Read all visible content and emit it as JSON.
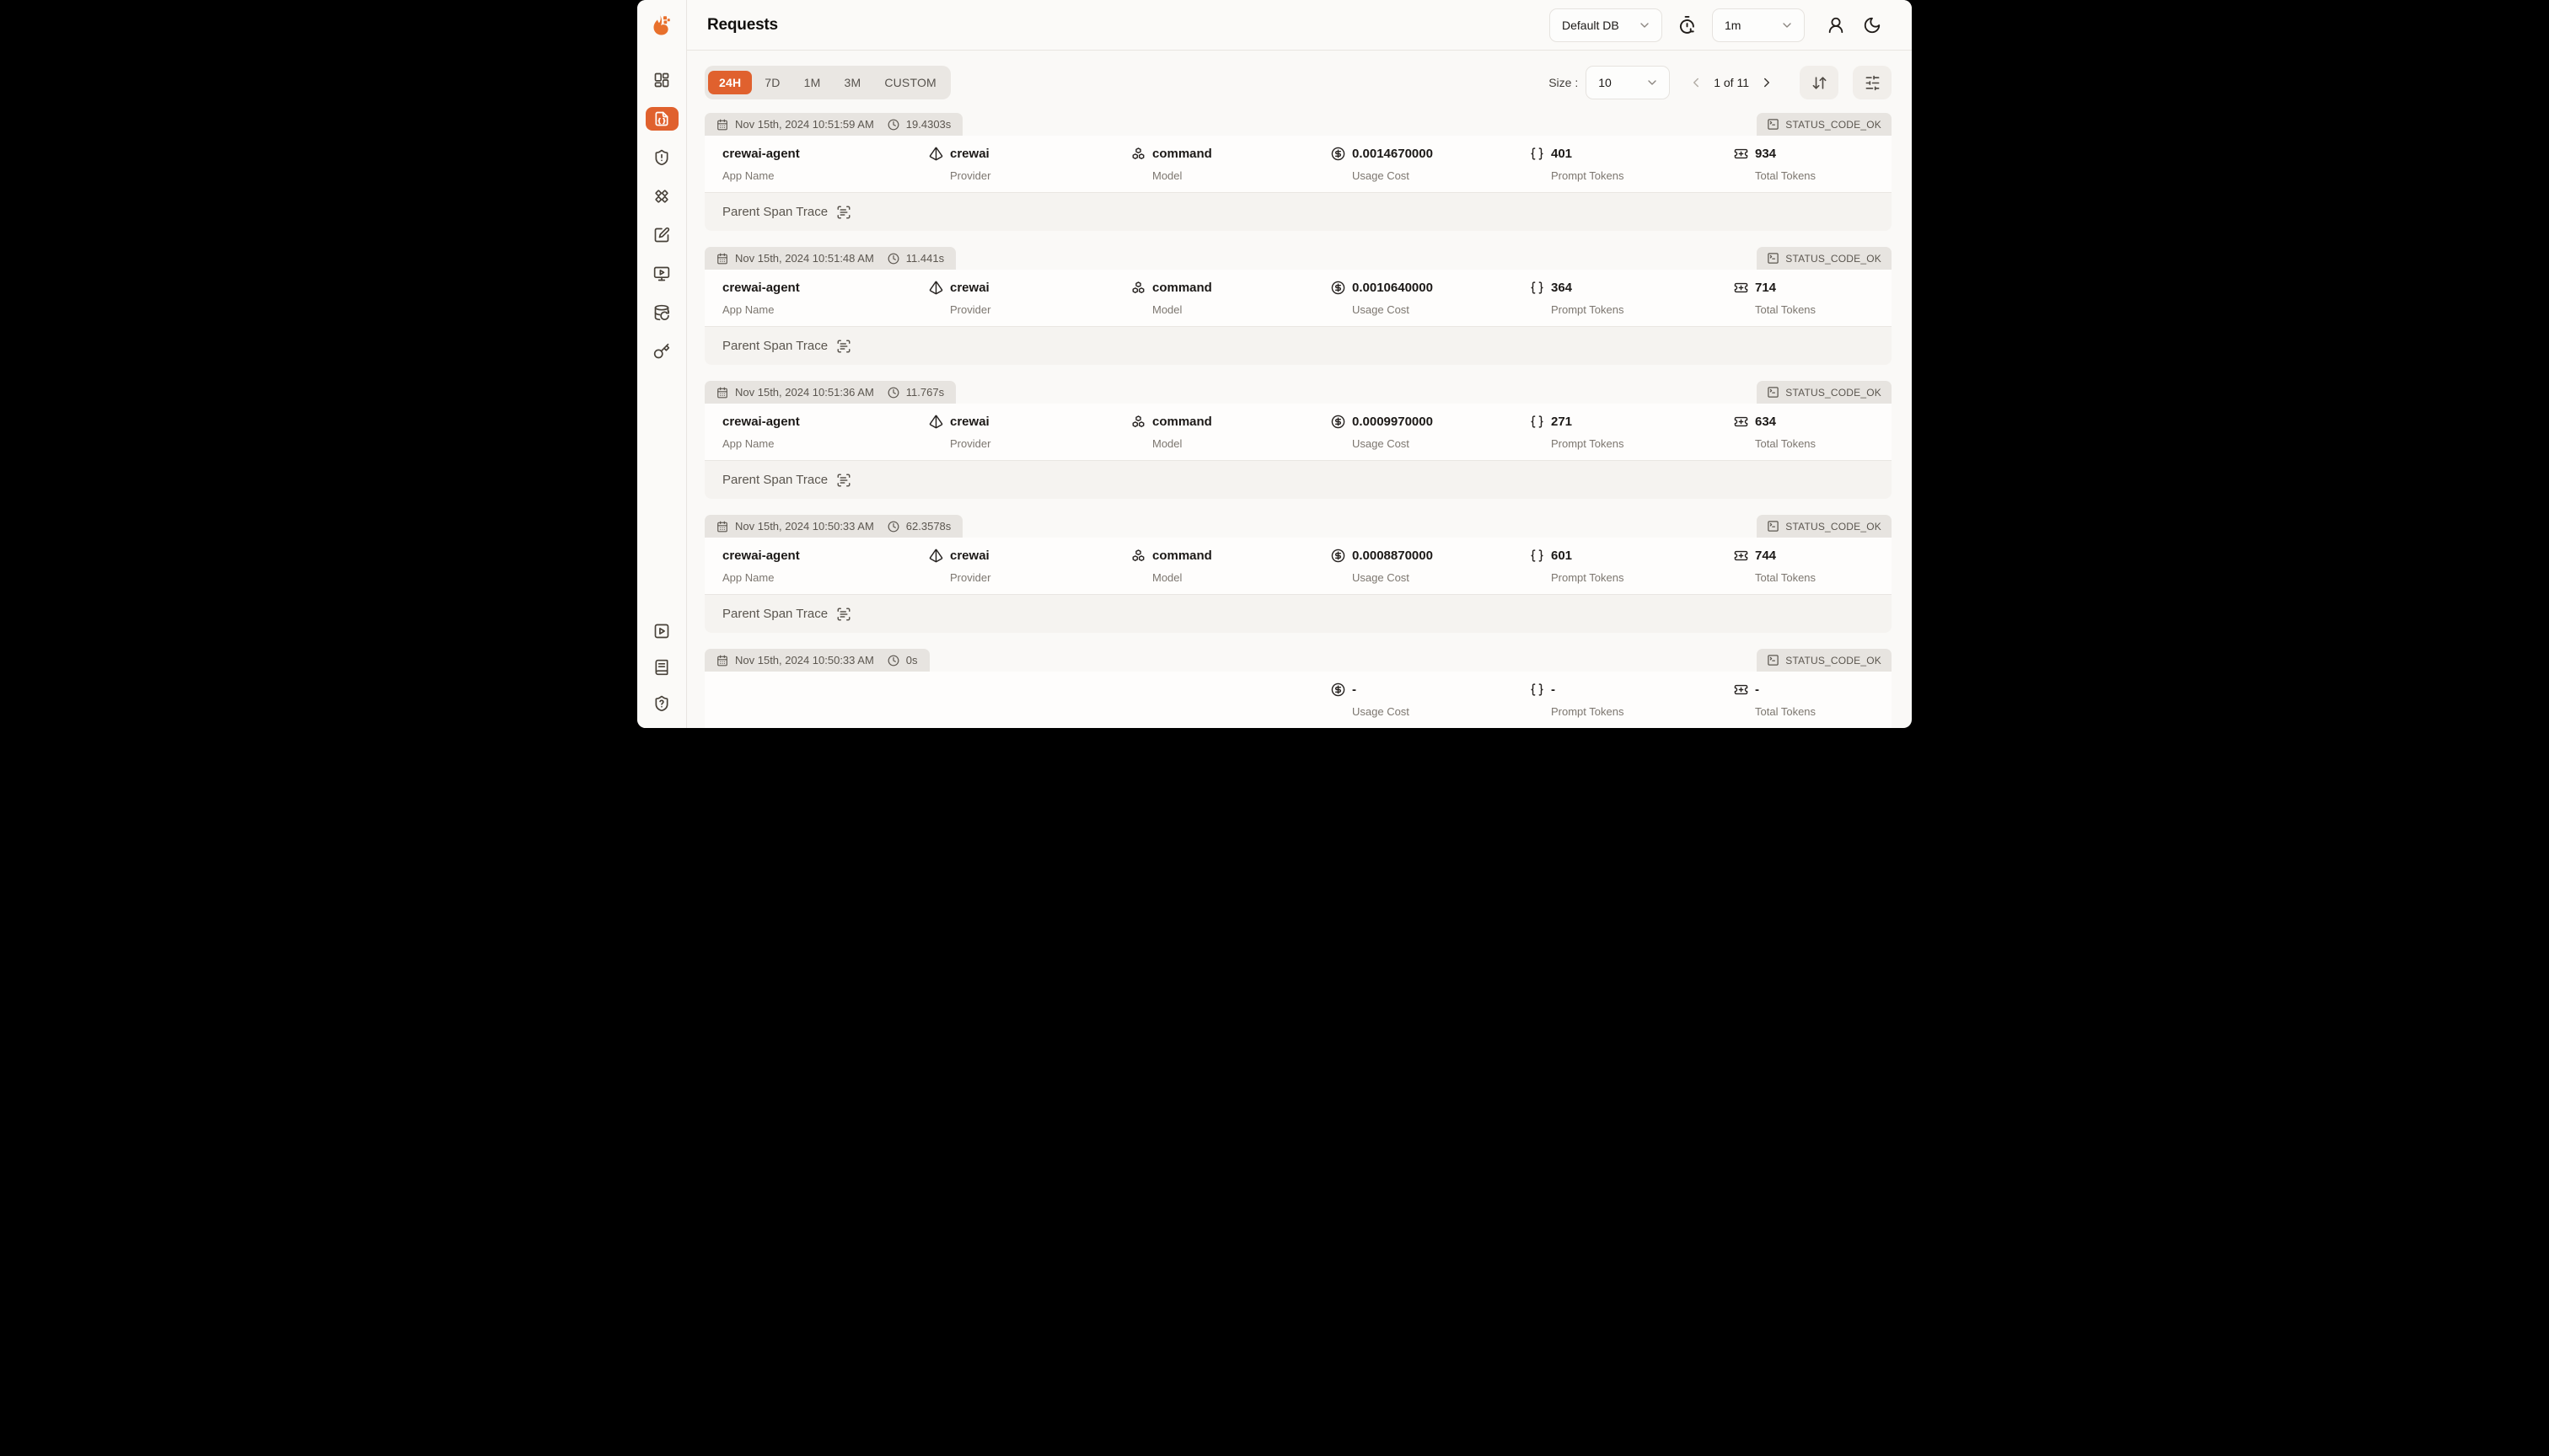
{
  "header": {
    "title": "Requests",
    "database_selector": {
      "value": "Default DB"
    },
    "refresh_selector": {
      "value": "1m"
    }
  },
  "sidebar": {
    "top": [
      {
        "name": "dashboard",
        "icon": "layout-dashboard",
        "active": false
      },
      {
        "name": "requests",
        "icon": "file-braces",
        "active": true
      },
      {
        "name": "exceptions",
        "icon": "shield-alert",
        "active": false
      },
      {
        "name": "prompt-hub",
        "icon": "diamonds",
        "active": false
      },
      {
        "name": "vault",
        "icon": "square-pen",
        "active": false
      },
      {
        "name": "openground",
        "icon": "monitor-play",
        "active": false
      },
      {
        "name": "database-config",
        "icon": "database-refresh",
        "active": false
      },
      {
        "name": "api-keys",
        "icon": "key",
        "active": false
      }
    ],
    "bottom": [
      {
        "name": "demo-video",
        "icon": "square-play",
        "active": false
      },
      {
        "name": "documentation",
        "icon": "book-text",
        "active": false
      },
      {
        "name": "support",
        "icon": "shield-question",
        "active": false
      }
    ]
  },
  "toolbar": {
    "time_ranges": [
      "24H",
      "7D",
      "1M",
      "3M",
      "CUSTOM"
    ],
    "active_range": "24H",
    "size_label": "Size :",
    "size_value": "10",
    "page_info": "1 of 11"
  },
  "labels": {
    "parent_span_trace": "Parent Span Trace"
  },
  "colors": {
    "accent_orange": "#e0612e",
    "tab_gray": "#e7e4e0",
    "value_text": "#1c1917",
    "label_text": "#7c766f"
  },
  "requests": [
    {
      "timestamp": "Nov 15th, 2024 10:51:59 AM",
      "duration": "19.4303s",
      "status": "STATUS_CODE_OK",
      "fields": [
        {
          "name": "app-name",
          "icon": "",
          "value": "crewai-agent",
          "label": "App Name"
        },
        {
          "name": "provider",
          "icon": "pyramid",
          "value": "crewai",
          "label": "Provider"
        },
        {
          "name": "model",
          "icon": "boxes",
          "value": "command",
          "label": "Model"
        },
        {
          "name": "usage-cost",
          "icon": "circle-dollar",
          "value": "0.0014670000",
          "label": "Usage Cost"
        },
        {
          "name": "prompt-tokens",
          "icon": "braces",
          "value": "401",
          "label": "Prompt Tokens"
        },
        {
          "name": "total-tokens",
          "icon": "ticket-plus",
          "value": "934",
          "label": "Total Tokens"
        }
      ]
    },
    {
      "timestamp": "Nov 15th, 2024 10:51:48 AM",
      "duration": "11.441s",
      "status": "STATUS_CODE_OK",
      "fields": [
        {
          "name": "app-name",
          "icon": "",
          "value": "crewai-agent",
          "label": "App Name"
        },
        {
          "name": "provider",
          "icon": "pyramid",
          "value": "crewai",
          "label": "Provider"
        },
        {
          "name": "model",
          "icon": "boxes",
          "value": "command",
          "label": "Model"
        },
        {
          "name": "usage-cost",
          "icon": "circle-dollar",
          "value": "0.0010640000",
          "label": "Usage Cost"
        },
        {
          "name": "prompt-tokens",
          "icon": "braces",
          "value": "364",
          "label": "Prompt Tokens"
        },
        {
          "name": "total-tokens",
          "icon": "ticket-plus",
          "value": "714",
          "label": "Total Tokens"
        }
      ]
    },
    {
      "timestamp": "Nov 15th, 2024 10:51:36 AM",
      "duration": "11.767s",
      "status": "STATUS_CODE_OK",
      "fields": [
        {
          "name": "app-name",
          "icon": "",
          "value": "crewai-agent",
          "label": "App Name"
        },
        {
          "name": "provider",
          "icon": "pyramid",
          "value": "crewai",
          "label": "Provider"
        },
        {
          "name": "model",
          "icon": "boxes",
          "value": "command",
          "label": "Model"
        },
        {
          "name": "usage-cost",
          "icon": "circle-dollar",
          "value": "0.0009970000",
          "label": "Usage Cost"
        },
        {
          "name": "prompt-tokens",
          "icon": "braces",
          "value": "271",
          "label": "Prompt Tokens"
        },
        {
          "name": "total-tokens",
          "icon": "ticket-plus",
          "value": "634",
          "label": "Total Tokens"
        }
      ]
    },
    {
      "timestamp": "Nov 15th, 2024 10:50:33 AM",
      "duration": "62.3578s",
      "status": "STATUS_CODE_OK",
      "fields": [
        {
          "name": "app-name",
          "icon": "",
          "value": "crewai-agent",
          "label": "App Name"
        },
        {
          "name": "provider",
          "icon": "pyramid",
          "value": "crewai",
          "label": "Provider"
        },
        {
          "name": "model",
          "icon": "boxes",
          "value": "command",
          "label": "Model"
        },
        {
          "name": "usage-cost",
          "icon": "circle-dollar",
          "value": "0.0008870000",
          "label": "Usage Cost"
        },
        {
          "name": "prompt-tokens",
          "icon": "braces",
          "value": "601",
          "label": "Prompt Tokens"
        },
        {
          "name": "total-tokens",
          "icon": "ticket-plus",
          "value": "744",
          "label": "Total Tokens"
        }
      ]
    },
    {
      "timestamp": "Nov 15th, 2024 10:50:33 AM",
      "duration": "0s",
      "status": "STATUS_CODE_OK",
      "fields": [
        {
          "name": "app-name",
          "icon": "",
          "value": "",
          "label": ""
        },
        {
          "name": "provider",
          "icon": "",
          "value": "",
          "label": ""
        },
        {
          "name": "model",
          "icon": "",
          "value": "",
          "label": ""
        },
        {
          "name": "usage-cost",
          "icon": "circle-dollar",
          "value": "-",
          "label": "Usage Cost"
        },
        {
          "name": "prompt-tokens",
          "icon": "braces",
          "value": "-",
          "label": "Prompt Tokens"
        },
        {
          "name": "total-tokens",
          "icon": "ticket-plus",
          "value": "-",
          "label": "Total Tokens"
        }
      ]
    }
  ]
}
